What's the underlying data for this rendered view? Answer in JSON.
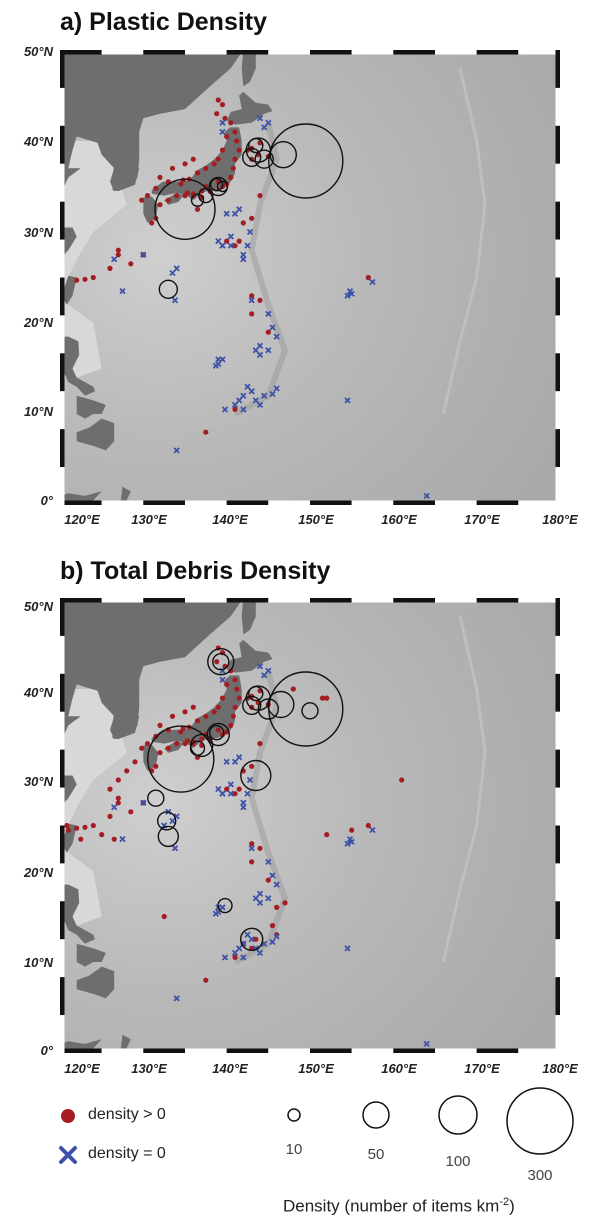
{
  "panels": [
    {
      "title": "a) Plastic Density",
      "yticks": [
        "50°N",
        "40°N",
        "30°N",
        "20°N",
        "10°N",
        "0°"
      ],
      "xticks": [
        "120°E",
        "130°E",
        "140°E",
        "150°E",
        "160°E",
        "170°E",
        "180°E"
      ],
      "positive": [
        [
          127,
          28
        ],
        [
          127,
          27.5
        ],
        [
          126,
          26
        ],
        [
          124,
          25
        ],
        [
          123,
          24.8
        ],
        [
          122,
          24.7
        ],
        [
          128.5,
          26.5
        ],
        [
          130,
          27.5
        ],
        [
          131,
          31
        ],
        [
          131.5,
          31.5
        ],
        [
          132,
          33
        ],
        [
          133,
          33.5
        ],
        [
          134,
          34
        ],
        [
          135,
          34
        ],
        [
          136,
          34
        ],
        [
          137,
          34.5
        ],
        [
          137.5,
          35
        ],
        [
          138,
          34.5
        ],
        [
          139,
          35.5
        ],
        [
          139.5,
          35
        ],
        [
          140,
          35.3
        ],
        [
          140.5,
          36
        ],
        [
          140.8,
          37
        ],
        [
          141,
          38
        ],
        [
          141.5,
          39
        ],
        [
          141.2,
          40
        ],
        [
          141,
          41
        ],
        [
          140.5,
          42
        ],
        [
          139.8,
          42.5
        ],
        [
          139.5,
          44
        ],
        [
          139,
          44.5
        ],
        [
          138.8,
          43
        ],
        [
          140,
          40.5
        ],
        [
          139.5,
          39
        ],
        [
          139,
          38
        ],
        [
          138.5,
          37.5
        ],
        [
          137.5,
          37
        ],
        [
          136.5,
          36.5
        ],
        [
          135.5,
          35.8
        ],
        [
          134.8,
          35.7
        ],
        [
          133,
          35.5
        ],
        [
          131.5,
          34.8
        ],
        [
          130.5,
          34
        ],
        [
          129.8,
          33.5
        ],
        [
          133.5,
          37
        ],
        [
          135,
          37.5
        ],
        [
          136,
          38
        ],
        [
          132,
          36
        ],
        [
          134.5,
          35.3
        ],
        [
          135.3,
          34.3
        ],
        [
          136,
          34.2
        ],
        [
          137,
          33.8
        ],
        [
          142.5,
          39
        ],
        [
          143,
          39.2
        ],
        [
          143.8,
          38.5
        ],
        [
          144,
          39.8
        ],
        [
          145,
          38.3
        ],
        [
          143,
          38
        ],
        [
          140,
          29
        ],
        [
          141.5,
          29
        ],
        [
          142,
          31
        ],
        [
          143,
          31.5
        ],
        [
          144,
          34
        ],
        [
          141,
          28.5
        ],
        [
          157,
          25
        ],
        [
          143,
          23
        ],
        [
          144,
          22.5
        ],
        [
          145,
          19
        ],
        [
          143,
          21
        ],
        [
          141,
          10.5
        ],
        [
          137.5,
          8
        ],
        [
          136.5,
          32.5
        ]
      ],
      "negative": [
        [
          127.5,
          23.5
        ],
        [
          126.5,
          27
        ],
        [
          130,
          27.5
        ],
        [
          133.5,
          25.5
        ],
        [
          134,
          26
        ],
        [
          133.8,
          22.5
        ],
        [
          140.5,
          28.5
        ],
        [
          139.5,
          28.5
        ],
        [
          141,
          32
        ],
        [
          142,
          27.5
        ],
        [
          142.5,
          28.5
        ],
        [
          142.8,
          30
        ],
        [
          142,
          27
        ],
        [
          143,
          22.5
        ],
        [
          145,
          21
        ],
        [
          145.5,
          19.5
        ],
        [
          146,
          18.5
        ],
        [
          145,
          17
        ],
        [
          144,
          17.5
        ],
        [
          143.5,
          17
        ],
        [
          144,
          16.5
        ],
        [
          139,
          15.5
        ],
        [
          139.5,
          16
        ],
        [
          139,
          16
        ],
        [
          138.7,
          15.3
        ],
        [
          139.8,
          10.5
        ],
        [
          142,
          12
        ],
        [
          141.5,
          11.5
        ],
        [
          143,
          12.5
        ],
        [
          143.5,
          11.5
        ],
        [
          144.5,
          12
        ],
        [
          145.5,
          12.2
        ],
        [
          146,
          12.8
        ],
        [
          144,
          11
        ],
        [
          142.5,
          13
        ],
        [
          141,
          11
        ],
        [
          142,
          10.5
        ],
        [
          134,
          6
        ],
        [
          154.5,
          23
        ],
        [
          154.8,
          23.5
        ],
        [
          155,
          23.2
        ],
        [
          157.5,
          24.5
        ],
        [
          154.5,
          11.5
        ],
        [
          164,
          1
        ],
        [
          144,
          42.5
        ],
        [
          145,
          42
        ],
        [
          144.5,
          41.5
        ],
        [
          139.5,
          42
        ],
        [
          139.5,
          41
        ],
        [
          139.5,
          28.5
        ],
        [
          140.5,
          29.5
        ],
        [
          139,
          29
        ],
        [
          141.5,
          32.5
        ],
        [
          140,
          32
        ]
      ],
      "circles": [
        {
          "lon": 135,
          "lat": 32.5,
          "r": 30
        },
        {
          "lon": 149.5,
          "lat": 37.8,
          "r": 37
        },
        {
          "lon": 146.8,
          "lat": 38.5,
          "r": 13
        },
        {
          "lon": 143.8,
          "lat": 39,
          "r": 12
        },
        {
          "lon": 143,
          "lat": 38.2,
          "r": 9
        },
        {
          "lon": 144.5,
          "lat": 38,
          "r": 9
        },
        {
          "lon": 143.5,
          "lat": 39.5,
          "r": 7
        },
        {
          "lon": 139,
          "lat": 35,
          "r": 9
        },
        {
          "lon": 138.8,
          "lat": 35.2,
          "r": 6
        },
        {
          "lon": 137.5,
          "lat": 34,
          "r": 7
        },
        {
          "lon": 136.5,
          "lat": 33.5,
          "r": 6
        },
        {
          "lon": 133,
          "lat": 23.7,
          "r": 9
        },
        {
          "lon": 139.5,
          "lat": 35,
          "r": 5
        }
      ]
    },
    {
      "title": "b) Total Debris Density",
      "yticks": [
        "50°N",
        "40°N",
        "30°N",
        "20°N",
        "10°N",
        "0°"
      ],
      "xticks": [
        "120°E",
        "130°E",
        "140°E",
        "150°E",
        "160°E",
        "170°E",
        "180°E"
      ],
      "positive": [
        [
          127,
          28
        ],
        [
          127,
          27.5
        ],
        [
          126,
          26
        ],
        [
          124,
          25
        ],
        [
          123,
          24.8
        ],
        [
          122,
          24.7
        ],
        [
          121,
          24.5
        ],
        [
          120.8,
          25
        ],
        [
          122.5,
          23.5
        ],
        [
          125,
          24
        ],
        [
          126.5,
          23.5
        ],
        [
          128.5,
          26.5
        ],
        [
          130,
          27.5
        ],
        [
          131,
          31
        ],
        [
          131.5,
          31.5
        ],
        [
          132,
          33
        ],
        [
          133,
          33.5
        ],
        [
          134,
          34
        ],
        [
          135,
          34
        ],
        [
          136,
          34
        ],
        [
          137,
          34.5
        ],
        [
          137.5,
          35
        ],
        [
          138,
          34.5
        ],
        [
          139,
          35.5
        ],
        [
          139.5,
          35
        ],
        [
          140,
          35.3
        ],
        [
          140.5,
          36
        ],
        [
          140.8,
          37
        ],
        [
          141,
          38
        ],
        [
          141.5,
          39
        ],
        [
          141.2,
          40
        ],
        [
          141,
          41
        ],
        [
          140.5,
          42
        ],
        [
          139.8,
          42.5
        ],
        [
          139.5,
          44
        ],
        [
          139,
          44.5
        ],
        [
          138.8,
          43
        ],
        [
          140,
          40.5
        ],
        [
          139.5,
          39
        ],
        [
          139,
          38
        ],
        [
          138.5,
          37.5
        ],
        [
          137.5,
          37
        ],
        [
          136.5,
          36.5
        ],
        [
          135.5,
          35.8
        ],
        [
          134.8,
          35.7
        ],
        [
          133,
          35.5
        ],
        [
          131.5,
          34.8
        ],
        [
          130.5,
          34
        ],
        [
          129.8,
          33.5
        ],
        [
          133.5,
          37
        ],
        [
          135,
          37.5
        ],
        [
          136,
          38
        ],
        [
          132,
          36
        ],
        [
          129,
          32
        ],
        [
          128,
          31
        ],
        [
          127,
          30
        ],
        [
          126,
          29
        ],
        [
          134.5,
          35.3
        ],
        [
          135.3,
          34.3
        ],
        [
          136,
          34.2
        ],
        [
          137,
          33.8
        ],
        [
          142.5,
          39
        ],
        [
          143,
          39.2
        ],
        [
          143.8,
          38.5
        ],
        [
          144,
          39.8
        ],
        [
          145,
          38.3
        ],
        [
          143,
          38
        ],
        [
          140,
          29
        ],
        [
          141.5,
          29
        ],
        [
          142,
          31
        ],
        [
          143,
          31.5
        ],
        [
          144,
          34
        ],
        [
          141,
          28.5
        ],
        [
          157,
          25
        ],
        [
          155,
          24.5
        ],
        [
          152,
          24
        ],
        [
          151.5,
          39
        ],
        [
          143,
          23
        ],
        [
          144,
          22.5
        ],
        [
          145,
          19
        ],
        [
          143,
          21
        ],
        [
          146,
          16
        ],
        [
          147,
          16.5
        ],
        [
          141,
          10.5
        ],
        [
          137.5,
          8
        ],
        [
          136.5,
          32.5
        ],
        [
          132.5,
          15
        ],
        [
          143,
          11.5
        ],
        [
          142,
          12
        ],
        [
          143.5,
          12.5
        ],
        [
          145.5,
          14
        ],
        [
          146,
          13
        ],
        [
          161,
          30
        ],
        [
          152,
          39
        ],
        [
          148,
          40
        ]
      ],
      "negative": [
        [
          127.5,
          23.5
        ],
        [
          126.5,
          27
        ],
        [
          130,
          27.5
        ],
        [
          133.5,
          25.5
        ],
        [
          134,
          26
        ],
        [
          133.8,
          22.5
        ],
        [
          140.5,
          28.5
        ],
        [
          139.5,
          28.5
        ],
        [
          141,
          32
        ],
        [
          142,
          27.5
        ],
        [
          142.5,
          28.5
        ],
        [
          142.8,
          30
        ],
        [
          142,
          27
        ],
        [
          143,
          22.5
        ],
        [
          145,
          21
        ],
        [
          145.5,
          19.5
        ],
        [
          146,
          18.5
        ],
        [
          145,
          17
        ],
        [
          144,
          17.5
        ],
        [
          143.5,
          17
        ],
        [
          144,
          16.5
        ],
        [
          139,
          15.5
        ],
        [
          139.5,
          16
        ],
        [
          139,
          16
        ],
        [
          138.7,
          15.3
        ],
        [
          139.8,
          10.5
        ],
        [
          142,
          12
        ],
        [
          141.5,
          11.5
        ],
        [
          143,
          12.5
        ],
        [
          143.5,
          11.5
        ],
        [
          144.5,
          12
        ],
        [
          145.5,
          12.2
        ],
        [
          146,
          12.8
        ],
        [
          144,
          11
        ],
        [
          142.5,
          13
        ],
        [
          141,
          11
        ],
        [
          142,
          10.5
        ],
        [
          134,
          6
        ],
        [
          154.5,
          23
        ],
        [
          154.8,
          23.5
        ],
        [
          155,
          23.2
        ],
        [
          157.5,
          24.5
        ],
        [
          154.5,
          11.5
        ],
        [
          164,
          1
        ],
        [
          144,
          42.5
        ],
        [
          145,
          42
        ],
        [
          144.5,
          41.5
        ],
        [
          139.5,
          42
        ],
        [
          139.5,
          41
        ],
        [
          139.5,
          28.5
        ],
        [
          140.5,
          29.5
        ],
        [
          139,
          29
        ],
        [
          141.5,
          32.5
        ],
        [
          140,
          32
        ],
        [
          132.5,
          25
        ],
        [
          133,
          26.5
        ]
      ],
      "circles": [
        {
          "lon": 134.5,
          "lat": 32.3,
          "r": 33
        },
        {
          "lon": 149.5,
          "lat": 37.8,
          "r": 37
        },
        {
          "lon": 146.5,
          "lat": 38.3,
          "r": 13
        },
        {
          "lon": 143.8,
          "lat": 39,
          "r": 12
        },
        {
          "lon": 143,
          "lat": 38.2,
          "r": 9
        },
        {
          "lon": 145,
          "lat": 37.8,
          "r": 10
        },
        {
          "lon": 143.5,
          "lat": 39.5,
          "r": 7
        },
        {
          "lon": 139,
          "lat": 35,
          "r": 11
        },
        {
          "lon": 138.8,
          "lat": 35.2,
          "r": 7
        },
        {
          "lon": 137,
          "lat": 33.8,
          "r": 11
        },
        {
          "lon": 136.5,
          "lat": 33.5,
          "r": 7
        },
        {
          "lon": 139.3,
          "lat": 43,
          "r": 13
        },
        {
          "lon": 139.3,
          "lat": 43,
          "r": 8
        },
        {
          "lon": 143.5,
          "lat": 30.5,
          "r": 15
        },
        {
          "lon": 131.5,
          "lat": 28,
          "r": 8
        },
        {
          "lon": 132.8,
          "lat": 25.5,
          "r": 9
        },
        {
          "lon": 133,
          "lat": 23.8,
          "r": 10
        },
        {
          "lon": 139.8,
          "lat": 16.2,
          "r": 7
        },
        {
          "lon": 143,
          "lat": 12.5,
          "r": 11
        },
        {
          "lon": 150,
          "lat": 37.6,
          "r": 8
        }
      ]
    }
  ],
  "legend": {
    "positive_label": "density > 0",
    "negative_label": "density = 0",
    "sizes": [
      {
        "label": "10",
        "r": 6
      },
      {
        "label": "50",
        "r": 13
      },
      {
        "label": "100",
        "r": 19
      },
      {
        "label": "300",
        "r": 33
      }
    ],
    "density_axis_label": "Density (number of items km",
    "density_axis_sup": "-2",
    "density_axis_close": ")"
  },
  "colors": {
    "positive": "#a31d22",
    "negative": "#3d52a8",
    "land": "#6e6e6e",
    "ocean": "#b4b4b4"
  }
}
